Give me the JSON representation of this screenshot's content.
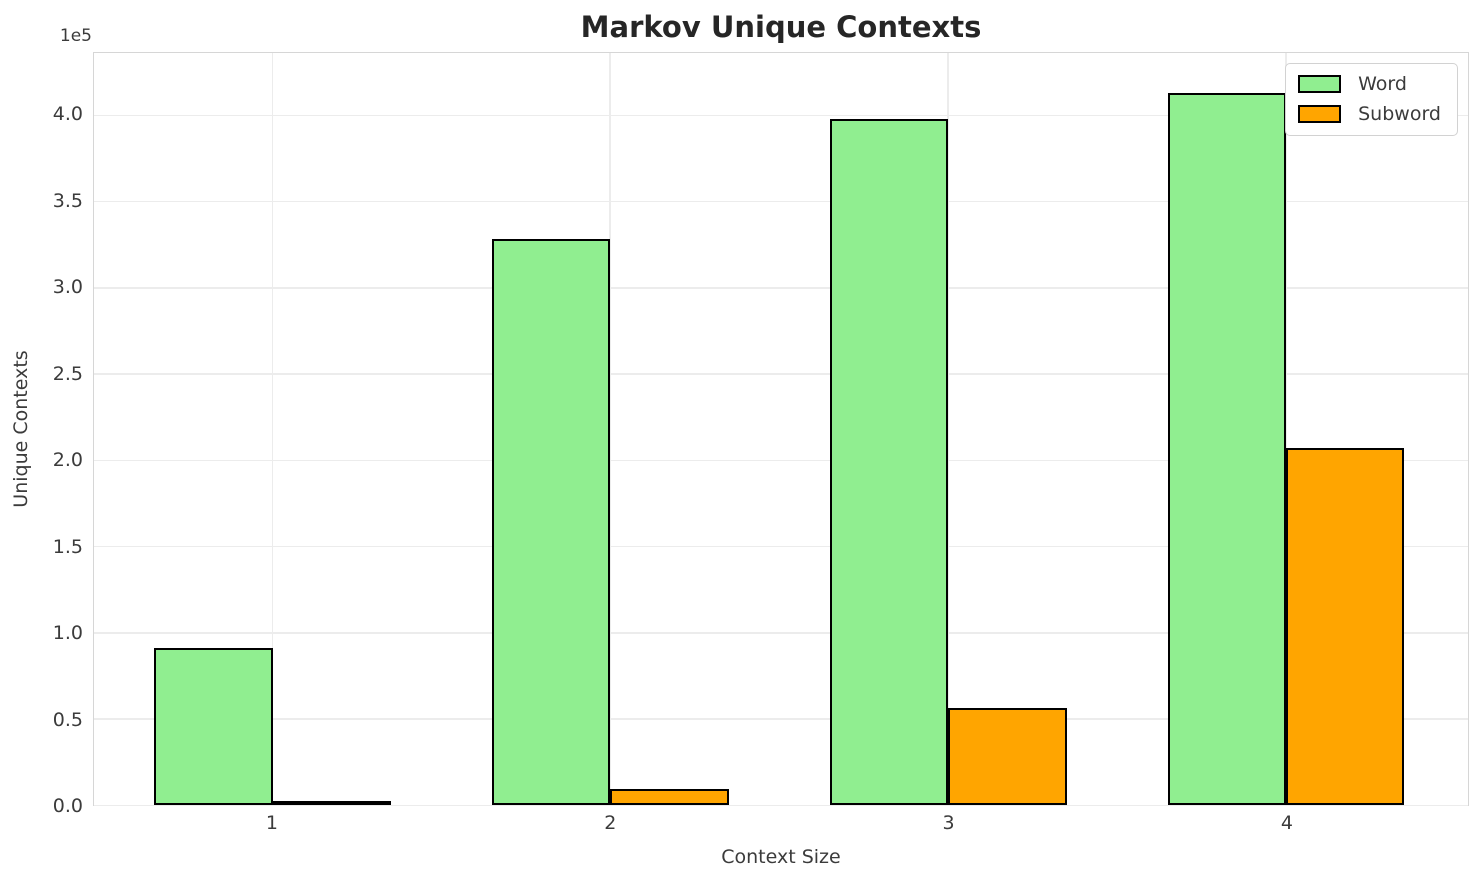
{
  "chart_data": {
    "type": "bar",
    "title": "Markov Unique Contexts",
    "xlabel": "Context Size",
    "ylabel": "Unique Contexts",
    "categories": [
      "1",
      "2",
      "3",
      "4"
    ],
    "series": [
      {
        "name": "Word",
        "color": "#90ee90",
        "values": [
          91000,
          328000,
          398000,
          413000
        ]
      },
      {
        "name": "Subword",
        "color": "#ffa500",
        "values": [
          600,
          9000,
          56000,
          207000
        ]
      }
    ],
    "bar_edge_color": "#000000",
    "ylim": [
      0,
      436000
    ],
    "yticks": {
      "values": [
        0,
        50000,
        100000,
        150000,
        200000,
        250000,
        300000,
        350000,
        400000
      ],
      "labels": [
        "0.0",
        "0.5",
        "1.0",
        "1.5",
        "2.0",
        "2.5",
        "3.0",
        "3.5",
        "4.0"
      ],
      "offset_label": "1e5"
    },
    "grid": "both",
    "legend": {
      "position": "upper right"
    },
    "colors": {
      "background": "#ffffff",
      "grid": "#ececec",
      "spine": "#d6d6d6",
      "text": "#3b3b3b",
      "title": "#262626"
    }
  }
}
